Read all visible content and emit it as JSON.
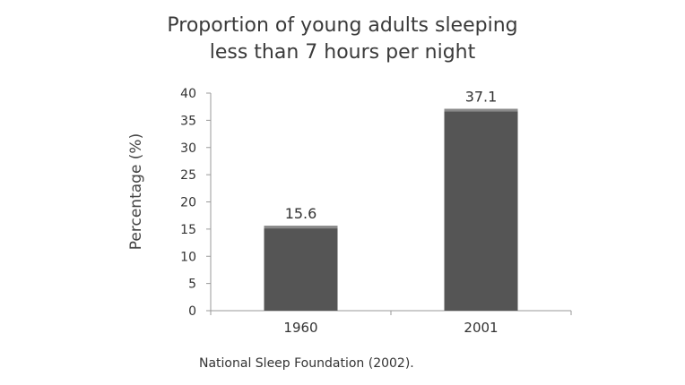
{
  "chart_data": {
    "type": "bar",
    "title_line1": "Proportion of young adults sleeping",
    "title_line2": "less than 7 hours per night",
    "xlabel": "",
    "ylabel": "Percentage (%)",
    "categories": [
      "1960",
      "2001"
    ],
    "values": [
      15.6,
      37.1
    ],
    "data_labels": [
      "15.6",
      "37.1"
    ],
    "ylim": [
      0,
      40
    ],
    "yticks": [
      0,
      5,
      10,
      15,
      20,
      25,
      30,
      35,
      40
    ],
    "grid": false,
    "bar_color": "#555555",
    "bar_top_color": "#8a8a8a"
  },
  "source": "National Sleep Foundation (2002)."
}
